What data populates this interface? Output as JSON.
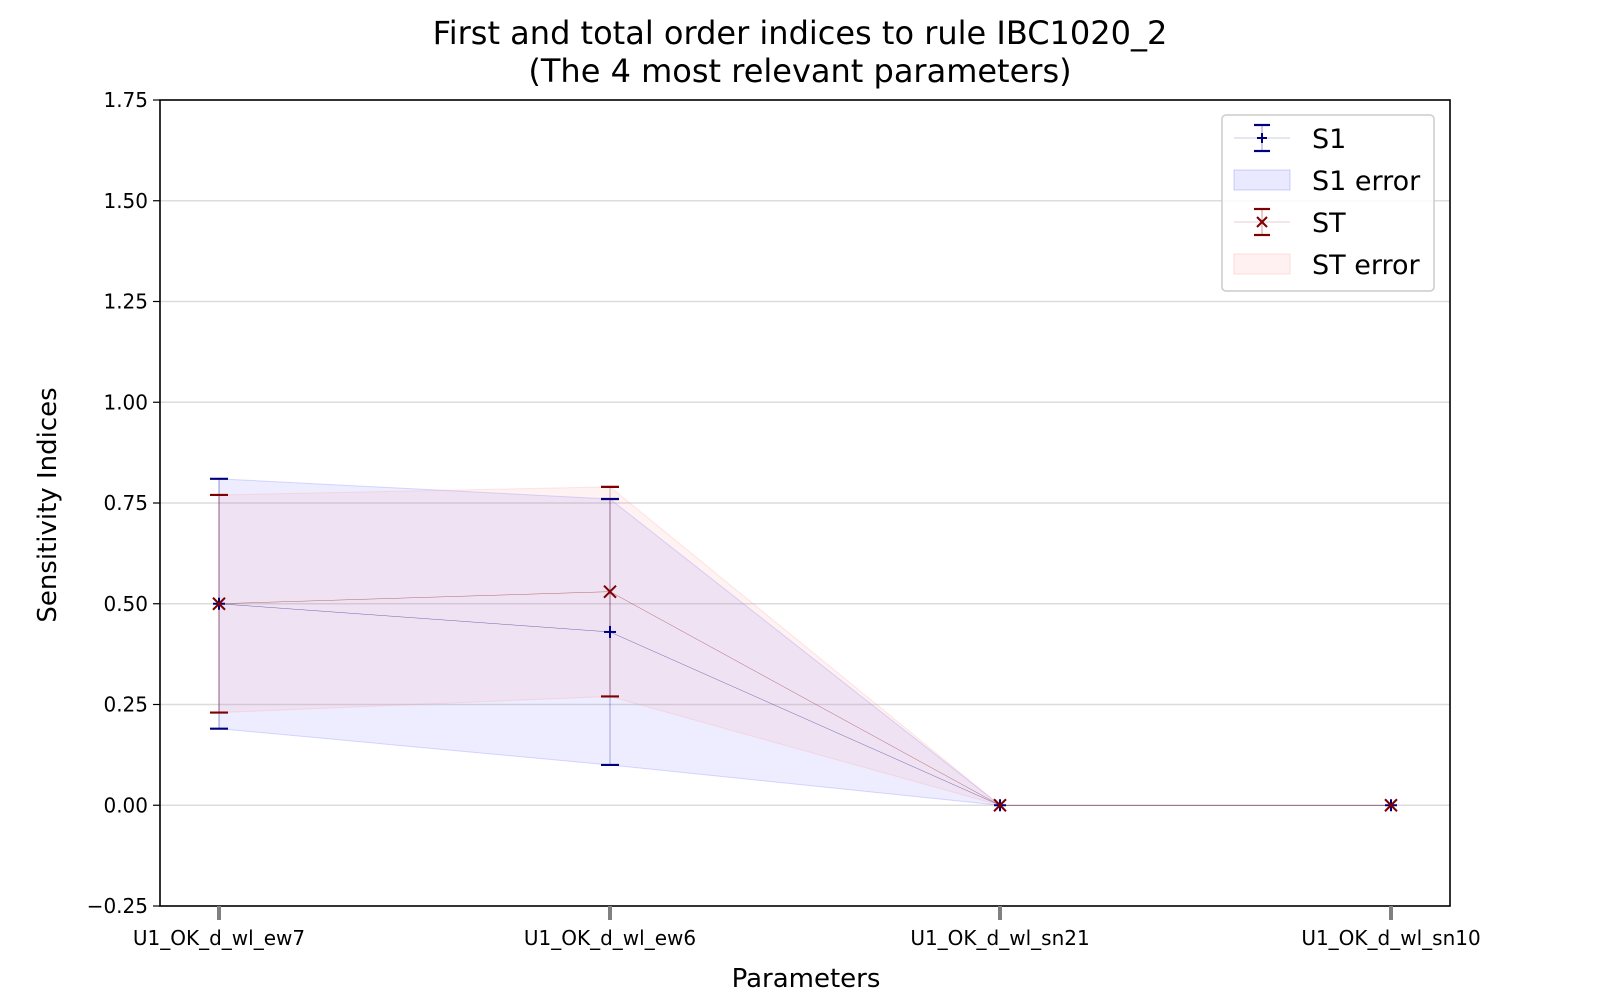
{
  "chart_data": {
    "type": "line",
    "title": "First and total order indices to rule IBC1020_2",
    "subtitle": "(The 4 most relevant parameters)",
    "xlabel": "Parameters",
    "ylabel": "Sensitivity Indices",
    "categories": [
      "U1_OK_d_wl_ew7",
      "U1_OK_d_wl_ew6",
      "U1_OK_d_wl_sn21",
      "U1_OK_d_wl_sn10"
    ],
    "ylim": [
      -0.25,
      1.75
    ],
    "yticks": [
      -0.25,
      0.0,
      0.25,
      0.5,
      0.75,
      1.0,
      1.25,
      1.5,
      1.75
    ],
    "ytick_labels": [
      "−0.25",
      "0.00",
      "0.25",
      "0.50",
      "0.75",
      "1.00",
      "1.25",
      "1.50",
      "1.75"
    ],
    "grid": "horizontal",
    "legend_position": "top-right",
    "series": [
      {
        "name": "S1",
        "marker": "+",
        "color": "#00007f",
        "band_color": "#6a6aff",
        "values": [
          0.5,
          0.43,
          0.0,
          0.0
        ],
        "lower": [
          0.19,
          0.1,
          0.0,
          0.0
        ],
        "upper": [
          0.81,
          0.76,
          0.0,
          0.0
        ]
      },
      {
        "name": "ST",
        "marker": "x",
        "color": "#7f0000",
        "band_color": "#ff9e9e",
        "values": [
          0.5,
          0.53,
          0.0,
          0.0
        ],
        "lower": [
          0.23,
          0.27,
          0.0,
          0.0
        ],
        "upper": [
          0.77,
          0.79,
          0.0,
          0.0
        ]
      }
    ],
    "legend": [
      "S1",
      "S1 error",
      "ST",
      "ST error"
    ]
  }
}
